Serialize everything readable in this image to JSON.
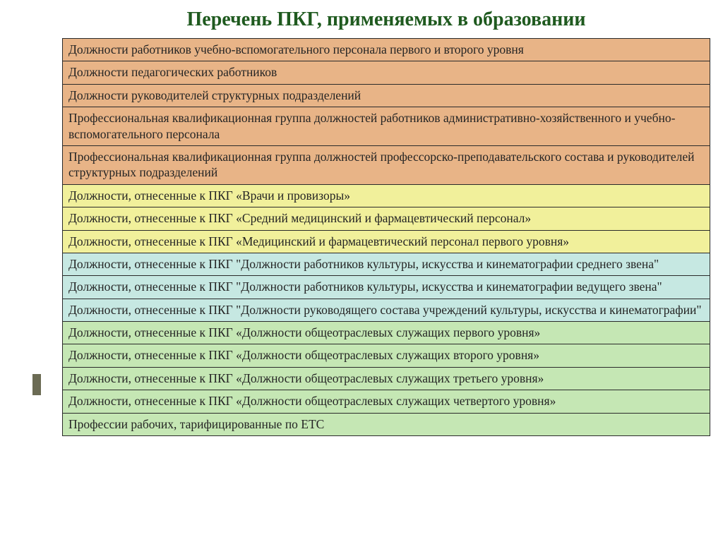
{
  "title": {
    "text": "Перечень ПКГ, применяемых в образовании",
    "color": "#1f5a1f"
  },
  "accent_color": "#6b6b54",
  "border_color": "#2a2a2a",
  "groups": [
    {
      "color": "#e8b487",
      "rows": [
        "Должности работников учебно-вспомогательного персонала первого и второго уровня",
        "Должности педагогических работников",
        "Должности руководителей структурных подразделений",
        "Профессиональная квалификационная группа должностей работников административно-хозяйственного и учебно-вспомогательного персонала",
        "Профессиональная квалификационная группа должностей профессорско-преподавательского состава и руководителей структурных подразделений"
      ]
    },
    {
      "color": "#f1f09b",
      "rows": [
        "Должности, отнесенные к ПКГ  «Врачи и провизоры»",
        "Должности, отнесенные к ПКГ «Средний медицинский и фармацевтический персонал»",
        "Должности, отнесенные к ПКГ  «Медицинский и фармацевтический персонал первого уровня»"
      ]
    },
    {
      "color": "#c6e8e2",
      "rows": [
        "Должности, отнесенные к ПКГ \"Должности работников культуры, искусства и кинематографии среднего звена\"",
        "Должности, отнесенные к ПКГ \"Должности работников культуры, искусства и кинематографии ведущего звена\"",
        "Должности, отнесенные к ПКГ \"Должности руководящего состава учреждений культуры, искусства и кинематографии\""
      ]
    },
    {
      "color": "#c5e7b4",
      "rows": [
        "Должности, отнесенные к ПКГ «Должности общеотраслевых служащих первого уровня»",
        "Должности, отнесенные к ПКГ «Должности общеотраслевых служащих второго уровня»",
        "Должности, отнесенные к ПКГ «Должности общеотраслевых служащих третьего уровня»",
        "Должности, отнесенные к ПКГ «Должности общеотраслевых служащих четвертого уровня»",
        "Профессии рабочих, тарифицированные по ЕТС"
      ]
    }
  ]
}
